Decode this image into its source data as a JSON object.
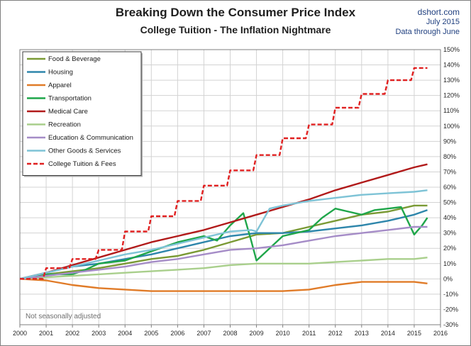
{
  "header": {
    "title": "Breaking Down the Consumer Price Index",
    "subtitle": "College Tuition  - The Inflation Nightmare",
    "source_site": "dshort.com",
    "source_date": "July 2015",
    "source_note": "Data through June"
  },
  "note": "Not seasonally adjusted",
  "colors": {
    "background": "#ffffff",
    "grid": "#d3d3d3",
    "plot_border": "#7f7f7f"
  },
  "chart_data": {
    "type": "line",
    "title": "Breaking Down the Consumer Price Index",
    "subtitle": "College Tuition  - The Inflation Nightmare",
    "xlabel": "",
    "ylabel": "",
    "x_ticks": [
      "2000",
      "2001",
      "2002",
      "2003",
      "2004",
      "2005",
      "2006",
      "2007",
      "2008",
      "2009",
      "2010",
      "2011",
      "2012",
      "2013",
      "2014",
      "2015",
      "2016"
    ],
    "y_ticks": [
      "-30%",
      "-20%",
      "-10%",
      "0%",
      "10%",
      "20%",
      "30%",
      "40%",
      "50%",
      "60%",
      "70%",
      "80%",
      "90%",
      "100%",
      "110%",
      "120%",
      "130%",
      "140%",
      "150%"
    ],
    "xlim": [
      2000,
      2016
    ],
    "ylim": [
      -30,
      150
    ],
    "y_axis_position": "right",
    "grid": true,
    "legend_position": "top-left",
    "series": [
      {
        "name": "Food & Beverage",
        "color": "#7a9a35",
        "dash": false,
        "x": [
          2000,
          2001,
          2002,
          2003,
          2004,
          2005,
          2006,
          2007,
          2008,
          2009,
          2010,
          2011,
          2012,
          2013,
          2014,
          2014.5,
          2015,
          2015.5
        ],
        "y": [
          0,
          3,
          5,
          7,
          10,
          13,
          15,
          19,
          24,
          29,
          30,
          34,
          38,
          42,
          44,
          46,
          48,
          48
        ]
      },
      {
        "name": "Housing",
        "color": "#2e86ab",
        "dash": false,
        "x": [
          2000,
          2001,
          2002,
          2003,
          2004,
          2005,
          2006,
          2007,
          2008,
          2009,
          2010,
          2011,
          2012,
          2013,
          2014,
          2015,
          2015.5
        ],
        "y": [
          0,
          4,
          8,
          10,
          13,
          16,
          20,
          24,
          28,
          30,
          30,
          31,
          33,
          35,
          38,
          42,
          45
        ]
      },
      {
        "name": "Apparel",
        "color": "#e07b28",
        "dash": false,
        "x": [
          2000,
          2001,
          2002,
          2003,
          2004,
          2005,
          2006,
          2007,
          2008,
          2009,
          2010,
          2011,
          2012,
          2013,
          2014,
          2015,
          2015.5
        ],
        "y": [
          0,
          -1,
          -4,
          -6,
          -7,
          -8,
          -8,
          -8,
          -8,
          -8,
          -8,
          -7,
          -4,
          -2,
          -2,
          -2,
          -3
        ]
      },
      {
        "name": "Transportation",
        "color": "#1fa64a",
        "dash": false,
        "x": [
          2000,
          2001,
          2002,
          2002.5,
          2003,
          2004,
          2005,
          2006,
          2007,
          2007.5,
          2008,
          2008.5,
          2008.8,
          2009,
          2009.5,
          2010,
          2011,
          2011.5,
          2012,
          2012.5,
          2013,
          2013.5,
          2014,
          2014.5,
          2015,
          2015.3,
          2015.5
        ],
        "y": [
          0,
          3,
          3,
          6,
          10,
          12,
          18,
          24,
          28,
          25,
          35,
          43,
          25,
          12,
          20,
          28,
          32,
          40,
          46,
          44,
          42,
          45,
          46,
          47,
          29,
          35,
          40
        ]
      },
      {
        "name": "Medical Care",
        "color": "#b11a1a",
        "dash": false,
        "x": [
          2000,
          2001,
          2002,
          2003,
          2004,
          2005,
          2006,
          2007,
          2008,
          2009,
          2010,
          2011,
          2012,
          2013,
          2014,
          2015,
          2015.5
        ],
        "y": [
          0,
          4,
          9,
          14,
          19,
          24,
          28,
          32,
          37,
          42,
          47,
          52,
          58,
          63,
          68,
          73,
          75
        ]
      },
      {
        "name": "Recreation",
        "color": "#a9cf8c",
        "dash": false,
        "x": [
          2000,
          2001,
          2002,
          2003,
          2004,
          2005,
          2006,
          2007,
          2008,
          2009,
          2010,
          2011,
          2012,
          2013,
          2014,
          2015,
          2015.5
        ],
        "y": [
          0,
          1,
          2,
          3,
          4,
          5,
          6,
          7,
          9,
          10,
          10,
          10,
          11,
          12,
          13,
          13,
          14
        ]
      },
      {
        "name": "Education & Communication",
        "color": "#a58cc7",
        "dash": false,
        "x": [
          2000,
          2001,
          2002,
          2003,
          2004,
          2005,
          2006,
          2007,
          2008,
          2009,
          2010,
          2011,
          2012,
          2013,
          2014,
          2015,
          2015.5
        ],
        "y": [
          0,
          2,
          4,
          6,
          8,
          11,
          13,
          16,
          19,
          20,
          22,
          25,
          28,
          30,
          32,
          34,
          34
        ]
      },
      {
        "name": "Other Goods & Services",
        "color": "#7ec3d6",
        "dash": false,
        "x": [
          2000,
          2001,
          2002,
          2003,
          2004,
          2005,
          2006,
          2007,
          2008,
          2008.8,
          2009,
          2009.5,
          2010,
          2011,
          2012,
          2013,
          2014,
          2015,
          2015.5
        ],
        "y": [
          0,
          4,
          8,
          12,
          16,
          19,
          23,
          27,
          31,
          32,
          31,
          46,
          48,
          51,
          53,
          55,
          56,
          57,
          58
        ]
      },
      {
        "name": "College Tuition & Fees",
        "color": "#e02020",
        "dash": true,
        "step": true,
        "x": [
          2000,
          2001,
          2002,
          2003,
          2004,
          2005,
          2006,
          2007,
          2008,
          2009,
          2010,
          2011,
          2012,
          2013,
          2014,
          2015,
          2015.5
        ],
        "y": [
          0,
          7,
          13,
          19,
          31,
          41,
          51,
          61,
          71,
          81,
          92,
          101,
          112,
          121,
          130,
          138,
          138
        ]
      }
    ]
  }
}
